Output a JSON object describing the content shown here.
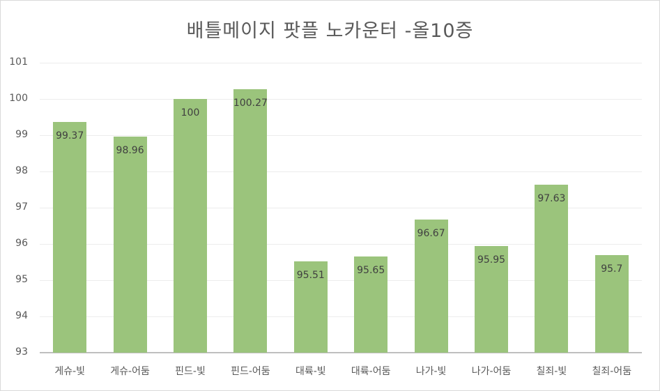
{
  "chart_data": {
    "type": "bar",
    "title": "배틀메이지 팟플 노카운터 -올10증",
    "xlabel": "",
    "ylabel": "",
    "ylim": [
      93,
      101
    ],
    "yticks": [
      93,
      94,
      95,
      96,
      97,
      98,
      99,
      100,
      101
    ],
    "grid": true,
    "legend": "none",
    "bar_color": "#9bc47c",
    "categories": [
      "게슈-빛",
      "게슈-어둠",
      "핀드-빛",
      "핀드-어둠",
      "대륙-빛",
      "대륙-어둠",
      "나가-빛",
      "나가-어둠",
      "칠죄-빛",
      "칠죄-어둠"
    ],
    "values": [
      99.37,
      98.96,
      100,
      100.27,
      95.51,
      95.65,
      96.67,
      95.95,
      97.63,
      95.7
    ],
    "value_labels": [
      "99.37",
      "98.96",
      "100",
      "100.27",
      "95.51",
      "95.65",
      "96.67",
      "95.95",
      "97.63",
      "95.7"
    ]
  }
}
